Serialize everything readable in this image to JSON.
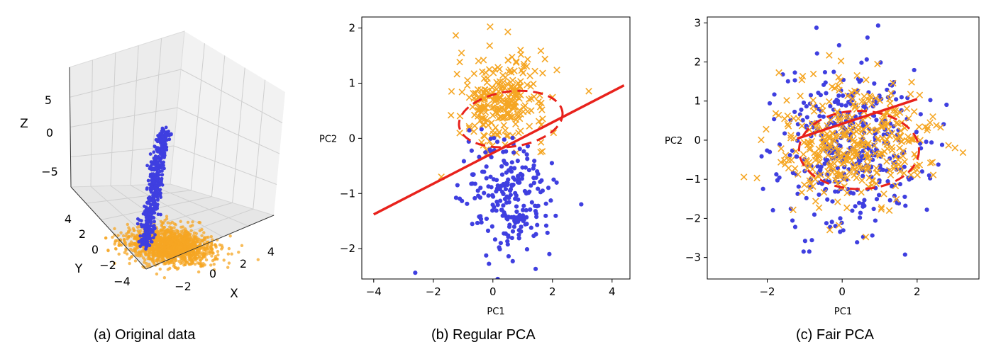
{
  "chart_data": [
    {
      "type": "scatter",
      "subtype": "3d-scatter",
      "caption": "(a) Original data",
      "xlabel": "X",
      "ylabel": "Y",
      "zlabel": "Z",
      "x_ticks": [
        "−2",
        "0",
        "2",
        "4"
      ],
      "y_ticks": [
        "4",
        "2",
        "0",
        "−2",
        "−4"
      ],
      "z_ticks": [
        "5",
        "0",
        "−5"
      ],
      "xlim": [
        -4,
        5.5
      ],
      "ylim": [
        -5,
        5
      ],
      "zlim": [
        -8,
        8
      ],
      "grid": true,
      "series": [
        {
          "color": "#f5a623",
          "marker": "dot",
          "count": 1500,
          "x_std": 1.5,
          "y_std": 1.6,
          "z_mean": -5.5,
          "z_std": 0.4
        },
        {
          "color": "#3f3fe0",
          "marker": "dot",
          "count": 500,
          "x_range": [
            -1,
            4
          ],
          "z_range": [
            -6,
            6
          ]
        }
      ]
    },
    {
      "type": "scatter",
      "caption": "(b) Regular PCA",
      "xlabel": "PC1",
      "ylabel": "PC2",
      "xlim": [
        -4.4,
        4.6
      ],
      "ylim": [
        -2.55,
        2.2
      ],
      "xticks": [
        -4,
        -2,
        0,
        2,
        4
      ],
      "yticks": [
        -2,
        -1,
        0,
        1,
        2
      ],
      "xtick_labels": [
        "−4",
        "−2",
        "0",
        "2",
        "4"
      ],
      "ytick_labels": [
        "−2",
        "−1",
        "0",
        "1",
        "2"
      ],
      "grid": false,
      "series": [
        {
          "color": "#f5a623",
          "marker": "x",
          "count": 260,
          "center": [
            0.3,
            0.7
          ],
          "spread": [
            0.75,
            0.4
          ]
        },
        {
          "color": "#3f3fe0",
          "marker": "dot",
          "count": 240,
          "center": [
            0.6,
            -1.1
          ],
          "spread": [
            0.75,
            0.55
          ]
        }
      ],
      "line": {
        "color": "#e8221c",
        "x": [
          -4,
          4.4
        ],
        "y": [
          -1.38,
          0.96
        ]
      },
      "ellipse": {
        "color": "#e8221c",
        "style": "dashed",
        "cx": 0.6,
        "cy": 0.35,
        "rx": 1.75,
        "ry": 0.5,
        "rotation_deg": 8
      }
    },
    {
      "type": "scatter",
      "caption": "(c) Fair PCA",
      "xlabel": "PC1",
      "ylabel": "PC2",
      "xlim": [
        -3.6,
        3.65
      ],
      "ylim": [
        -3.55,
        3.15
      ],
      "xticks": [
        -2,
        0,
        2
      ],
      "yticks": [
        -3,
        -2,
        -1,
        0,
        1,
        2,
        3
      ],
      "xtick_labels": [
        "−2",
        "0",
        "2"
      ],
      "ytick_labels": [
        "−3",
        "−2",
        "−1",
        "0",
        "1",
        "2",
        "3"
      ],
      "grid": false,
      "series": [
        {
          "color": "#3f3fe0",
          "marker": "dot",
          "count": 380,
          "center": [
            0.2,
            -0.1
          ],
          "spread": [
            0.95,
            1.05
          ]
        },
        {
          "color": "#f5a623",
          "marker": "x",
          "count": 380,
          "center": [
            0.3,
            -0.1
          ],
          "spread": [
            1.0,
            0.75
          ]
        }
      ],
      "line": {
        "color": "#e8221c",
        "x": [
          -1.2,
          2.0
        ],
        "y": [
          0.04,
          1.05
        ]
      },
      "ellipse": {
        "color": "#e8221c",
        "style": "dashed",
        "cx": 0.45,
        "cy": -0.25,
        "rx": 1.6,
        "ry": 1.0,
        "rotation_deg": 0
      }
    }
  ]
}
